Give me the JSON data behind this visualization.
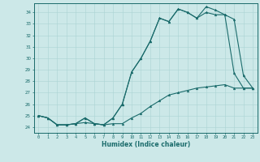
{
  "xlabel": "Humidex (Indice chaleur)",
  "bg_color": "#cce8e8",
  "line_color": "#1a6b6b",
  "grid_color": "#aad4d4",
  "xlim": [
    -0.5,
    23.5
  ],
  "ylim": [
    23.5,
    34.8
  ],
  "xticks": [
    0,
    1,
    2,
    3,
    4,
    5,
    6,
    7,
    8,
    9,
    10,
    11,
    12,
    13,
    14,
    15,
    16,
    17,
    18,
    19,
    20,
    21,
    22,
    23
  ],
  "yticks": [
    24,
    25,
    26,
    27,
    28,
    29,
    30,
    31,
    32,
    33,
    34
  ],
  "line1_x": [
    0,
    1,
    2,
    3,
    4,
    5,
    6,
    7,
    8,
    9,
    10,
    11,
    12,
    13,
    14,
    15,
    16,
    17,
    18,
    19,
    20,
    21,
    22,
    23
  ],
  "line1_y": [
    25.0,
    24.8,
    24.2,
    24.2,
    24.3,
    24.8,
    24.3,
    24.2,
    24.8,
    26.0,
    28.8,
    30.0,
    31.5,
    33.5,
    33.2,
    34.3,
    34.0,
    33.5,
    34.0,
    33.8,
    33.8,
    33.4,
    28.5,
    27.4
  ],
  "line2_x": [
    0,
    1,
    2,
    3,
    4,
    5,
    6,
    7,
    8,
    9,
    10,
    11,
    12,
    13,
    14,
    15,
    16,
    17,
    18,
    19,
    20,
    21,
    22,
    23
  ],
  "line2_y": [
    25.0,
    24.8,
    24.2,
    24.2,
    24.3,
    24.8,
    24.3,
    24.2,
    24.8,
    26.0,
    28.8,
    30.0,
    31.5,
    33.5,
    33.2,
    34.3,
    34.0,
    33.5,
    34.5,
    34.2,
    33.8,
    28.7,
    27.4,
    27.4
  ],
  "line3_x": [
    0,
    1,
    2,
    3,
    4,
    5,
    6,
    7,
    8,
    9,
    10,
    11,
    12,
    13,
    14,
    15,
    16,
    17,
    18,
    19,
    20,
    21,
    22,
    23
  ],
  "line3_y": [
    25.0,
    24.8,
    24.2,
    24.2,
    24.3,
    24.4,
    24.3,
    24.2,
    24.3,
    24.3,
    24.8,
    25.2,
    25.8,
    26.3,
    26.8,
    27.0,
    27.2,
    27.4,
    27.5,
    27.6,
    27.7,
    27.4,
    27.4,
    27.4
  ]
}
